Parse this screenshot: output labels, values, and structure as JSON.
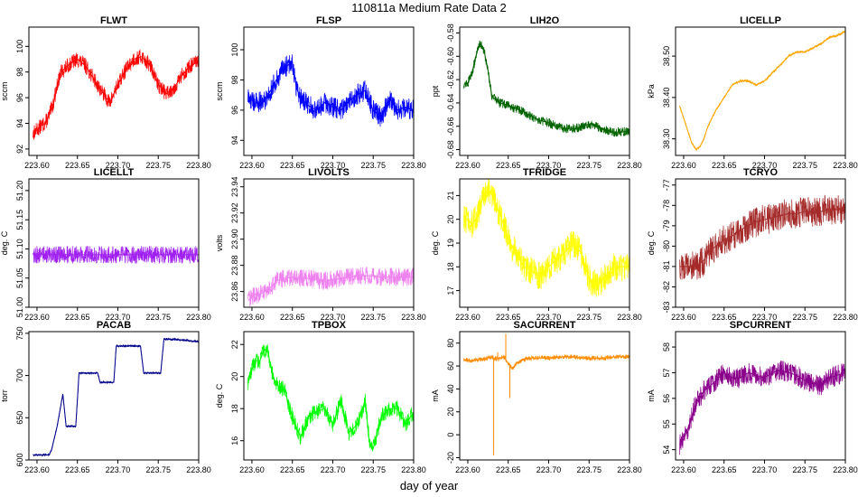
{
  "title": "110811a   Medium Rate Data 2",
  "x_label": "day of year",
  "chart_data": [
    {
      "type": "line",
      "title": "FLWT",
      "ylabel": "sccm",
      "color": "#ff0000",
      "xlim": [
        223.59,
        223.8
      ],
      "ylim": [
        91.5,
        101.5
      ],
      "yticks": [
        92,
        94,
        96,
        98,
        100
      ],
      "xticks": [
        223.6,
        223.65,
        223.7,
        223.75,
        223.8
      ],
      "x_tick_labels": [
        "223.60",
        "223.65",
        "223.70",
        "223.75",
        "223.80"
      ],
      "noise": 1.2,
      "x": [
        223.595,
        223.6,
        223.605,
        223.61,
        223.615,
        223.62,
        223.625,
        223.63,
        223.64,
        223.65,
        223.66,
        223.67,
        223.68,
        223.69,
        223.7,
        223.71,
        223.72,
        223.73,
        223.74,
        223.75,
        223.76,
        223.77,
        223.78,
        223.79,
        223.8
      ],
      "y": [
        93.2,
        93.5,
        93.8,
        94.0,
        94.6,
        95.5,
        97.0,
        98.0,
        98.6,
        99.0,
        98.5,
        97.5,
        96.5,
        95.6,
        97.0,
        98.2,
        99.0,
        99.2,
        98.5,
        97.0,
        96.3,
        96.8,
        97.8,
        98.5,
        98.8
      ]
    },
    {
      "type": "line",
      "title": "FLSP",
      "ylabel": "sccm",
      "color": "#0000ff",
      "xlim": [
        223.59,
        223.8
      ],
      "ylim": [
        93.0,
        101.5
      ],
      "yticks": [
        94,
        96,
        98,
        100
      ],
      "xticks": [
        223.6,
        223.65,
        223.7,
        223.75,
        223.8
      ],
      "x_tick_labels": [
        "223.60",
        "223.65",
        "223.70",
        "223.75",
        "223.80"
      ],
      "noise": 1.4,
      "x": [
        223.595,
        223.605,
        223.615,
        223.62,
        223.63,
        223.64,
        223.645,
        223.65,
        223.655,
        223.66,
        223.67,
        223.68,
        223.69,
        223.7,
        223.71,
        223.72,
        223.73,
        223.74,
        223.75,
        223.76,
        223.77,
        223.78,
        223.79,
        223.8
      ],
      "y": [
        96.8,
        96.5,
        96.6,
        97.0,
        98.0,
        98.8,
        99.0,
        99.2,
        97.5,
        96.8,
        96.3,
        96.0,
        96.5,
        96.2,
        96.0,
        96.6,
        97.0,
        97.3,
        96.0,
        95.5,
        96.8,
        96.0,
        96.2,
        96.0
      ]
    },
    {
      "type": "line",
      "title": "LIH2O",
      "ylabel": "ppt",
      "color": "#006400",
      "xlim": [
        223.59,
        223.8
      ],
      "ylim": [
        -0.685,
        -0.575
      ],
      "yticks": [
        -0.68,
        -0.66,
        -0.64,
        -0.62,
        -0.6,
        -0.58
      ],
      "y_tick_labels": [
        "-0.68",
        "-0.66",
        "-0.64",
        "-0.62",
        "-0.60",
        "-0.58"
      ],
      "xticks": [
        223.6,
        223.65,
        223.7,
        223.75,
        223.8
      ],
      "x_tick_labels": [
        "223.60",
        "223.65",
        "223.70",
        "223.75",
        "223.80"
      ],
      "noise": 0.008,
      "x": [
        223.595,
        223.6,
        223.605,
        223.61,
        223.615,
        223.62,
        223.625,
        223.63,
        223.64,
        223.65,
        223.66,
        223.67,
        223.68,
        223.69,
        223.7,
        223.71,
        223.72,
        223.73,
        223.74,
        223.75,
        223.76,
        223.77,
        223.78,
        223.79,
        223.8
      ],
      "y": [
        -0.624,
        -0.623,
        -0.615,
        -0.6,
        -0.588,
        -0.595,
        -0.612,
        -0.635,
        -0.64,
        -0.642,
        -0.645,
        -0.648,
        -0.652,
        -0.655,
        -0.657,
        -0.66,
        -0.662,
        -0.662,
        -0.661,
        -0.658,
        -0.66,
        -0.663,
        -0.665,
        -0.665,
        -0.664
      ]
    },
    {
      "type": "line",
      "title": "LICELLP",
      "ylabel": "kPa",
      "color": "#ffa500",
      "xlim": [
        223.59,
        223.8
      ],
      "ylim": [
        38.26,
        38.57
      ],
      "yticks": [
        38.3,
        38.4,
        38.5
      ],
      "y_tick_labels": [
        "38.30",
        "38.40",
        "38.50"
      ],
      "xticks": [
        223.6,
        223.65,
        223.7,
        223.75,
        223.8
      ],
      "x_tick_labels": [
        "223.60",
        "223.65",
        "223.70",
        "223.75",
        "223.80"
      ],
      "noise": 0.006,
      "x": [
        223.595,
        223.6,
        223.605,
        223.61,
        223.615,
        223.62,
        223.625,
        223.63,
        223.64,
        223.65,
        223.66,
        223.67,
        223.68,
        223.69,
        223.7,
        223.71,
        223.72,
        223.73,
        223.74,
        223.75,
        223.76,
        223.77,
        223.78,
        223.79,
        223.8
      ],
      "y": [
        38.38,
        38.35,
        38.32,
        38.29,
        38.275,
        38.28,
        38.3,
        38.33,
        38.37,
        38.4,
        38.43,
        38.44,
        38.44,
        38.43,
        38.44,
        38.46,
        38.48,
        38.5,
        38.51,
        38.51,
        38.52,
        38.53,
        38.545,
        38.55,
        38.56
      ]
    },
    {
      "type": "line",
      "title": "LICELLT",
      "ylabel": "deg. C",
      "color": "#a020f0",
      "xlim": [
        223.59,
        223.8
      ],
      "ylim": [
        51.0,
        51.22
      ],
      "yticks": [
        51.0,
        51.05,
        51.1,
        51.15,
        51.2
      ],
      "y_tick_labels": [
        "51.00",
        "51.05",
        "51.10",
        "51.15",
        "51.20"
      ],
      "xticks": [
        223.6,
        223.65,
        223.7,
        223.75,
        223.8
      ],
      "x_tick_labels": [
        "223.60",
        "223.65",
        "223.70",
        "223.75",
        "223.80"
      ],
      "noise": 0.03,
      "x": [
        223.595,
        223.6,
        223.605,
        223.61,
        223.615,
        223.625,
        223.63,
        223.64,
        223.65,
        223.66,
        223.67,
        223.68,
        223.69,
        223.7,
        223.71,
        223.72,
        223.73,
        223.74,
        223.75,
        223.76,
        223.77,
        223.78,
        223.79,
        223.8
      ],
      "y": [
        51.09,
        51.09,
        51.09,
        51.09,
        51.09,
        51.09,
        51.09,
        51.09,
        51.09,
        51.09,
        51.09,
        51.09,
        51.09,
        51.09,
        51.09,
        51.09,
        51.09,
        51.09,
        51.09,
        51.09,
        51.09,
        51.09,
        51.09,
        51.09
      ]
    },
    {
      "type": "line",
      "title": "LIVOLTS",
      "ylabel": "volts",
      "color": "#ee82ee",
      "xlim": [
        223.59,
        223.8
      ],
      "ylim": [
        23.848,
        23.946
      ],
      "yticks": [
        23.86,
        23.88,
        23.9,
        23.92,
        23.94
      ],
      "y_tick_labels": [
        "23.86",
        "23.88",
        "23.90",
        "23.92",
        "23.94"
      ],
      "xticks": [
        223.6,
        223.65,
        223.7,
        223.75,
        223.8
      ],
      "x_tick_labels": [
        "223.60",
        "223.65",
        "223.70",
        "223.75",
        "223.80"
      ],
      "noise": 0.014,
      "x": [
        223.595,
        223.6,
        223.605,
        223.61,
        223.615,
        223.62,
        223.625,
        223.63,
        223.64,
        223.65,
        223.66,
        223.67,
        223.68,
        223.69,
        223.7,
        223.71,
        223.72,
        223.73,
        223.74,
        223.75,
        223.76,
        223.77,
        223.78,
        223.79,
        223.8
      ],
      "y": [
        23.853,
        23.856,
        23.858,
        23.858,
        23.86,
        23.862,
        23.864,
        23.868,
        23.87,
        23.871,
        23.87,
        23.87,
        23.869,
        23.868,
        23.869,
        23.87,
        23.871,
        23.872,
        23.872,
        23.872,
        23.871,
        23.871,
        23.871,
        23.871,
        23.871
      ]
    },
    {
      "type": "line",
      "title": "TFRIDGE",
      "ylabel": "deg. C",
      "color": "#ffff00",
      "xlim": [
        223.59,
        223.8
      ],
      "ylim": [
        16.3,
        21.7
      ],
      "yticks": [
        17,
        18,
        19,
        20,
        21
      ],
      "xticks": [
        223.6,
        223.65,
        223.7,
        223.75,
        223.8
      ],
      "x_tick_labels": [
        "223.60",
        "223.65",
        "223.70",
        "223.75",
        "223.80"
      ],
      "noise": 1.2,
      "x": [
        223.595,
        223.6,
        223.605,
        223.61,
        223.615,
        223.62,
        223.625,
        223.63,
        223.64,
        223.65,
        223.66,
        223.67,
        223.68,
        223.69,
        223.7,
        223.71,
        223.72,
        223.73,
        223.74,
        223.75,
        223.76,
        223.77,
        223.78,
        223.79,
        223.8
      ],
      "y": [
        20.0,
        20.0,
        19.8,
        20.0,
        20.5,
        21.0,
        21.3,
        21.0,
        20.2,
        19.2,
        18.5,
        18.0,
        17.8,
        17.6,
        18.0,
        18.3,
        18.6,
        19.0,
        18.6,
        17.5,
        17.2,
        17.6,
        18.0,
        18.0,
        18.0
      ]
    },
    {
      "type": "line",
      "title": "TCRYO",
      "ylabel": "deg. C",
      "color": "#a52a2a",
      "xlim": [
        223.59,
        223.8
      ],
      "ylim": [
        -83.0,
        -76.7
      ],
      "yticks": [
        -83,
        -82,
        -81,
        -80,
        -79,
        -78,
        -77
      ],
      "xticks": [
        223.6,
        223.65,
        223.7,
        223.75,
        223.8
      ],
      "x_tick_labels": [
        "223.60",
        "223.65",
        "223.70",
        "223.75",
        "223.80"
      ],
      "noise": 1.5,
      "x": [
        223.595,
        223.605,
        223.615,
        223.625,
        223.63,
        223.64,
        223.65,
        223.66,
        223.67,
        223.68,
        223.69,
        223.7,
        223.71,
        223.72,
        223.73,
        223.74,
        223.75,
        223.76,
        223.77,
        223.78,
        223.79,
        223.8
      ],
      "y": [
        -81.0,
        -81.0,
        -81.0,
        -80.7,
        -80.3,
        -80.0,
        -79.7,
        -79.5,
        -79.2,
        -79.0,
        -78.8,
        -78.7,
        -78.6,
        -78.5,
        -78.4,
        -78.4,
        -78.3,
        -78.3,
        -78.3,
        -78.2,
        -78.2,
        -78.2
      ]
    },
    {
      "type": "line",
      "title": "PACAB",
      "ylabel": "torr",
      "color": "#00008b",
      "xlim": [
        223.59,
        223.8
      ],
      "ylim": [
        600,
        752
      ],
      "yticks": [
        600,
        650,
        700,
        750
      ],
      "xticks": [
        223.6,
        223.65,
        223.7,
        223.75,
        223.8
      ],
      "x_tick_labels": [
        "223.60",
        "223.65",
        "223.70",
        "223.75",
        "223.80"
      ],
      "noise": 2.5,
      "x": [
        223.595,
        223.615,
        223.618,
        223.625,
        223.632,
        223.636,
        223.648,
        223.652,
        223.675,
        223.678,
        223.695,
        223.698,
        223.715,
        223.718,
        223.728,
        223.732,
        223.753,
        223.757,
        223.77,
        223.8
      ],
      "y": [
        606,
        606,
        612,
        640,
        678,
        640,
        640,
        703,
        703,
        692,
        692,
        735,
        735,
        735,
        735,
        703,
        703,
        743,
        743,
        740
      ]
    },
    {
      "type": "line",
      "title": "TPBOX",
      "ylabel": "deg. C",
      "color": "#00ff00",
      "xlim": [
        223.59,
        223.8
      ],
      "ylim": [
        14.8,
        22.8
      ],
      "yticks": [
        16,
        18,
        20,
        22
      ],
      "xticks": [
        223.6,
        223.65,
        223.7,
        223.75,
        223.8
      ],
      "x_tick_labels": [
        "223.60",
        "223.65",
        "223.70",
        "223.75",
        "223.80"
      ],
      "noise": 1.0,
      "x": [
        223.595,
        223.6,
        223.605,
        223.61,
        223.615,
        223.62,
        223.625,
        223.63,
        223.64,
        223.65,
        223.66,
        223.67,
        223.68,
        223.69,
        223.7,
        223.71,
        223.72,
        223.73,
        223.74,
        223.745,
        223.75,
        223.76,
        223.77,
        223.78,
        223.79,
        223.8
      ],
      "y": [
        19.6,
        20.5,
        21.0,
        21.0,
        21.7,
        21.5,
        20.2,
        19.5,
        19.2,
        17.5,
        16.2,
        17.5,
        17.8,
        18.0,
        17.0,
        18.5,
        16.5,
        17.0,
        18.5,
        16.0,
        15.5,
        17.5,
        18.0,
        18.0,
        17.0,
        17.8
      ]
    },
    {
      "type": "line",
      "title": "SACURRENT",
      "ylabel": "mA",
      "color": "#ff8c00",
      "xlim": [
        223.59,
        223.8
      ],
      "ylim": [
        -22,
        90
      ],
      "yticks": [
        -20,
        0,
        20,
        40,
        60,
        80
      ],
      "xticks": [
        223.6,
        223.65,
        223.7,
        223.75,
        223.8
      ],
      "x_tick_labels": [
        "223.60",
        "223.65",
        "223.70",
        "223.75",
        "223.80"
      ],
      "noise": 4,
      "x": [
        223.595,
        223.6,
        223.61,
        223.62,
        223.63,
        223.633,
        223.64,
        223.645,
        223.65,
        223.655,
        223.66,
        223.67,
        223.68,
        223.69,
        223.7,
        223.71,
        223.72,
        223.73,
        223.74,
        223.75,
        223.76,
        223.77,
        223.78,
        223.79,
        223.8
      ],
      "y": [
        65,
        65,
        65,
        66,
        68,
        66,
        67,
        68,
        62,
        58,
        62,
        66,
        67,
        67,
        67,
        68,
        68,
        68,
        67,
        67,
        67,
        67,
        68,
        68,
        68
      ],
      "spikes": [
        {
          "x": 223.632,
          "y": -18
        },
        {
          "x": 223.637,
          "y": 72
        },
        {
          "x": 223.647,
          "y": 88
        },
        {
          "x": 223.652,
          "y": 32
        }
      ]
    },
    {
      "type": "line",
      "title": "SPCURRENT",
      "ylabel": "mA",
      "color": "#8b008b",
      "xlim": [
        223.59,
        223.8
      ],
      "ylim": [
        53.6,
        58.6
      ],
      "yticks": [
        54,
        55,
        56,
        57,
        58
      ],
      "xticks": [
        223.6,
        223.65,
        223.7,
        223.75,
        223.8
      ],
      "x_tick_labels": [
        "223.60",
        "223.65",
        "223.70",
        "223.75",
        "223.80"
      ],
      "noise": 0.8,
      "x": [
        223.595,
        223.6,
        223.605,
        223.61,
        223.615,
        223.62,
        223.625,
        223.63,
        223.64,
        223.65,
        223.66,
        223.67,
        223.68,
        223.69,
        223.7,
        223.71,
        223.72,
        223.73,
        223.74,
        223.75,
        223.76,
        223.77,
        223.78,
        223.79,
        223.8
      ],
      "y": [
        54.2,
        54.4,
        54.8,
        55.3,
        55.8,
        56.0,
        56.3,
        56.4,
        56.7,
        57.0,
        56.8,
        56.8,
        57.0,
        56.9,
        56.8,
        57.0,
        57.1,
        57.0,
        56.9,
        56.7,
        56.6,
        56.5,
        56.8,
        56.9,
        57.0
      ]
    }
  ]
}
